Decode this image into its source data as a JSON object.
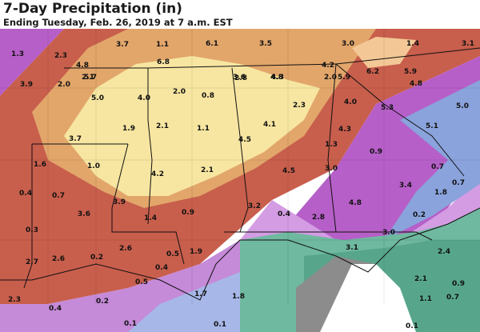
{
  "header": {
    "title": "7-Day Precipitation (in)",
    "subtitle": "Ending Tuesday, Feb. 26, 2019 at 7 a.m. EST"
  },
  "colors": {
    "yellow": "#f7e6a1",
    "tan": "#e2a66b",
    "red": "#c85e4c",
    "purple": "#b65fc8",
    "lavender": "#d39ce3",
    "blue": "#7d9ad6",
    "green": "#6fb9a0",
    "gray": "#8c8c8c",
    "ocean": "#ffffff"
  },
  "labels": [
    "1.3",
    "2.3",
    "3.7",
    "6.8",
    "6.1",
    "3.5",
    "3.0",
    "1.4",
    "3.1",
    "4.8",
    "1.1",
    "2.1",
    "3.6",
    "4.3",
    "4.2",
    "3.9",
    "2.0",
    "5.7",
    "5.9",
    "6.2",
    "5.9",
    "5.0",
    "4.0",
    "2.0",
    "0.8",
    "2.8",
    "4.8",
    "2.3",
    "2.0",
    "4.0",
    "5.3",
    "4.8",
    "5.0",
    "2.1",
    "1.1",
    "4.1",
    "4.3",
    "5.1",
    "1.9",
    "3.7",
    "4.5",
    "1.3",
    "1.6",
    "1.0",
    "0.9",
    "0.7",
    "4.2",
    "2.1",
    "4.5",
    "3.0",
    "3.4",
    "0.7",
    "0.4",
    "0.7",
    "1.8",
    "4.8",
    "3.2",
    "3.9",
    "3.6",
    "1.4",
    "0.9",
    "0.4",
    "2.8",
    "0.2",
    "0.3",
    "3.0",
    "3.1",
    "2.6",
    "0.5",
    "1.9",
    "2.4",
    "2.7",
    "2.6",
    "0.2",
    "0.4",
    "2.1",
    "0.9",
    "0.5",
    "1.7",
    "1.8",
    "2.3",
    "0.4",
    "0.2",
    "1.1",
    "0.7",
    "0.1",
    "0.1",
    "0.1"
  ],
  "labels_note": ""
}
